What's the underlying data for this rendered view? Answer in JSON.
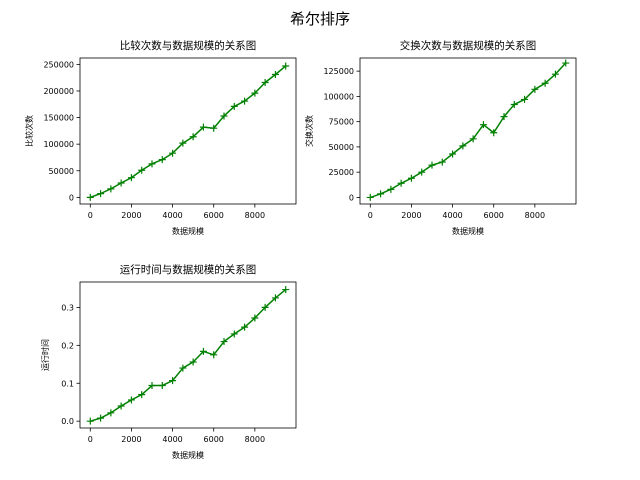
{
  "figure": {
    "suptitle": "希尔排序",
    "line_color": "#008000",
    "marker": "plus"
  },
  "chart_data": [
    {
      "type": "line",
      "title": "比较次数与数据规模的关系图",
      "xlabel": "数据规模",
      "ylabel": "比较次数",
      "xlim": [
        -500,
        10000
      ],
      "ylim": [
        -12500,
        262000
      ],
      "xticks": [
        0,
        2000,
        4000,
        6000,
        8000
      ],
      "yticks": [
        0,
        50000,
        100000,
        150000,
        200000,
        250000
      ],
      "x": [
        0,
        500,
        1000,
        1500,
        2000,
        2500,
        3000,
        3500,
        4000,
        4500,
        5000,
        5500,
        6000,
        6500,
        7000,
        7500,
        8000,
        8500,
        9000,
        9500
      ],
      "y": [
        0,
        7000,
        16000,
        27000,
        37000,
        51000,
        63000,
        71000,
        83000,
        102000,
        114000,
        132000,
        130000,
        153000,
        171000,
        181000,
        196000,
        216000,
        231000,
        247000
      ]
    },
    {
      "type": "line",
      "title": "交换次数与数据规模的关系图",
      "xlabel": "数据规模",
      "ylabel": "交换次数",
      "xlim": [
        -500,
        10000
      ],
      "ylim": [
        -6500,
        138000
      ],
      "xticks": [
        0,
        2000,
        4000,
        6000,
        8000
      ],
      "yticks": [
        0,
        25000,
        50000,
        75000,
        100000,
        125000
      ],
      "x": [
        0,
        500,
        1000,
        1500,
        2000,
        2500,
        3000,
        3500,
        4000,
        4500,
        5000,
        5500,
        6000,
        6500,
        7000,
        7500,
        8000,
        8500,
        9000,
        9500
      ],
      "y": [
        0,
        3500,
        8000,
        14000,
        19000,
        25000,
        32000,
        35000,
        43000,
        51000,
        58000,
        72000,
        64000,
        80000,
        92000,
        97000,
        107000,
        113000,
        122000,
        133000
      ]
    },
    {
      "type": "line",
      "title": "运行时间与数据规模的关系图",
      "xlabel": "数据规模",
      "ylabel": "运行时间",
      "xlim": [
        -500,
        10000
      ],
      "ylim": [
        -0.018,
        0.367
      ],
      "xticks": [
        0,
        2000,
        4000,
        6000,
        8000
      ],
      "yticks": [
        0.0,
        0.1,
        0.2,
        0.3
      ],
      "x": [
        0,
        500,
        1000,
        1500,
        2000,
        2500,
        3000,
        3500,
        4000,
        4500,
        5000,
        5500,
        6000,
        6500,
        7000,
        7500,
        8000,
        8500,
        9000,
        9500
      ],
      "y": [
        0.0,
        0.008,
        0.022,
        0.04,
        0.056,
        0.07,
        0.094,
        0.094,
        0.107,
        0.14,
        0.156,
        0.184,
        0.175,
        0.21,
        0.23,
        0.248,
        0.272,
        0.3,
        0.325,
        0.347
      ]
    }
  ]
}
